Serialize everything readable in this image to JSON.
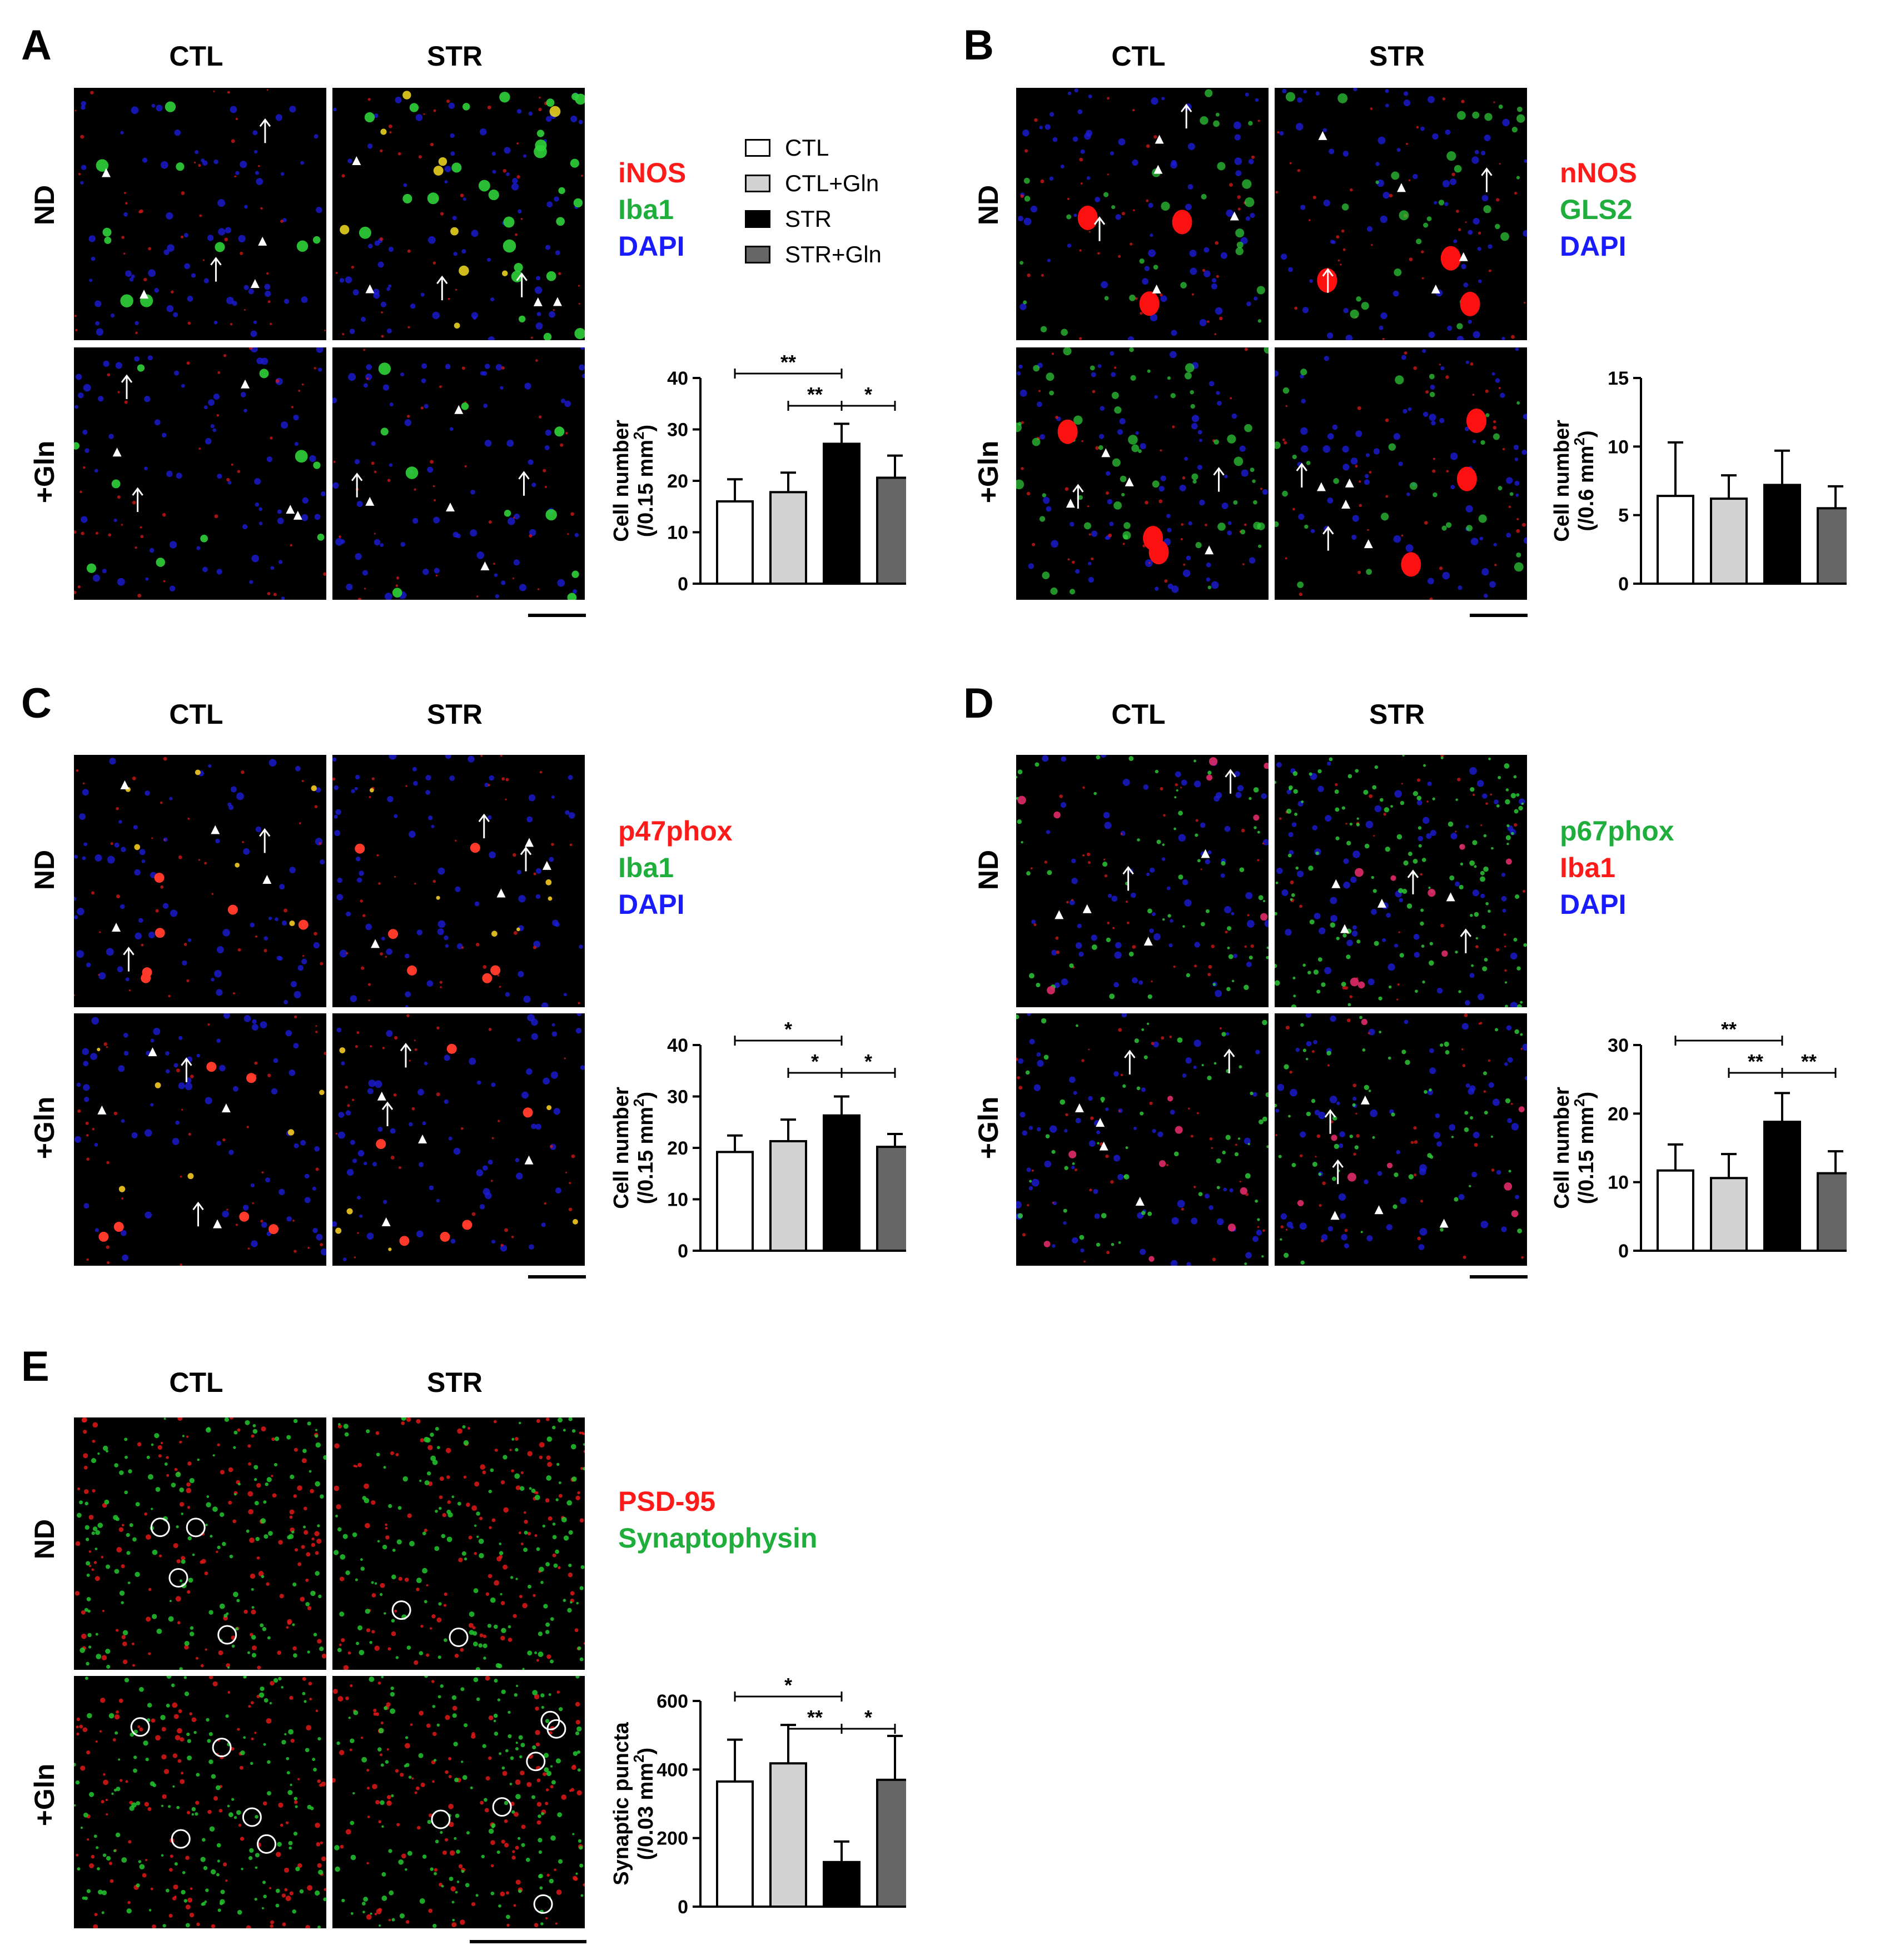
{
  "panels": {
    "A": {
      "label": "A",
      "col_headers": [
        "CTL",
        "STR"
      ],
      "row_headers": [
        "ND",
        "+Gln"
      ],
      "stains": [
        {
          "text": "iNOS",
          "color": "#ff1a1a"
        },
        {
          "text": "Iba1",
          "color": "#1fae3c"
        },
        {
          "text": "DAPI",
          "color": "#1a1aff"
        }
      ]
    },
    "B": {
      "label": "B",
      "col_headers": [
        "CTL",
        "STR"
      ],
      "row_headers": [
        "ND",
        "+Gln"
      ],
      "stains": [
        {
          "text": "nNOS",
          "color": "#ff1a1a"
        },
        {
          "text": "GLS2",
          "color": "#1fae3c"
        },
        {
          "text": "DAPI",
          "color": "#1a1aff"
        }
      ]
    },
    "C": {
      "label": "C",
      "col_headers": [
        "CTL",
        "STR"
      ],
      "row_headers": [
        "ND",
        "+Gln"
      ],
      "stains": [
        {
          "text": "p47phox",
          "color": "#ff1a1a"
        },
        {
          "text": "Iba1",
          "color": "#1fae3c"
        },
        {
          "text": "DAPI",
          "color": "#1a1aff"
        }
      ]
    },
    "D": {
      "label": "D",
      "col_headers": [
        "CTL",
        "STR"
      ],
      "row_headers": [
        "ND",
        "+Gln"
      ],
      "stains": [
        {
          "text": "p67phox",
          "color": "#1fae3c"
        },
        {
          "text": "Iba1",
          "color": "#ff1a1a"
        },
        {
          "text": "DAPI",
          "color": "#1a1aff"
        }
      ]
    },
    "E": {
      "label": "E",
      "col_headers": [
        "CTL",
        "STR"
      ],
      "row_headers": [
        "ND",
        "+Gln"
      ],
      "stains": [
        {
          "text": "PSD-95",
          "color": "#ff1a1a"
        },
        {
          "text": "Synaptophysin",
          "color": "#1fae3c"
        }
      ]
    }
  },
  "legend": [
    {
      "label": "CTL",
      "color": "#ffffff"
    },
    {
      "label": "CTL+Gln",
      "color": "#d3d3d3"
    },
    {
      "label": "STR",
      "color": "#000000"
    },
    {
      "label": "STR+Gln",
      "color": "#666666"
    }
  ],
  "chart_data": [
    {
      "panel": "A",
      "type": "bar",
      "categories": [
        "CTL",
        "CTL+Gln",
        "STR",
        "STR+Gln"
      ],
      "values": [
        16,
        17.8,
        27.2,
        20.6
      ],
      "errors": [
        4.3,
        3.8,
        3.9,
        4.3
      ],
      "ylabel": "Cell number",
      "yunit": "(/0.15 mm",
      "yunit_sup": "2",
      "yunit_end": ")",
      "ylim": [
        0,
        40
      ],
      "yticks": [
        0,
        10,
        20,
        30,
        40
      ],
      "significance": [
        {
          "from": 0,
          "to": 2,
          "label": "**"
        },
        {
          "from": 1,
          "to": 2,
          "label": "**"
        },
        {
          "from": 2,
          "to": 3,
          "label": "*"
        }
      ]
    },
    {
      "panel": "B",
      "type": "bar",
      "categories": [
        "CTL",
        "CTL+Gln",
        "STR",
        "STR+Gln"
      ],
      "values": [
        6.4,
        6.2,
        7.2,
        5.5
      ],
      "errors": [
        3.9,
        1.7,
        2.5,
        1.6
      ],
      "ylabel": "Cell number",
      "yunit": "(/0.6 mm",
      "yunit_sup": "2",
      "yunit_end": ")",
      "ylim": [
        0,
        15
      ],
      "yticks": [
        0,
        5,
        10,
        15
      ],
      "significance": []
    },
    {
      "panel": "C",
      "type": "bar",
      "categories": [
        "CTL",
        "CTL+Gln",
        "STR",
        "STR+Gln"
      ],
      "values": [
        19.2,
        21.3,
        26.3,
        20.2
      ],
      "errors": [
        3.2,
        4.2,
        3.7,
        2.5
      ],
      "ylabel": "Cell number",
      "yunit": "(/0.15 mm",
      "yunit_sup": "2",
      "yunit_end": ")",
      "ylim": [
        0,
        40
      ],
      "yticks": [
        0,
        10,
        20,
        30,
        40
      ],
      "significance": [
        {
          "from": 0,
          "to": 2,
          "label": "*"
        },
        {
          "from": 1,
          "to": 2,
          "label": "*"
        },
        {
          "from": 2,
          "to": 3,
          "label": "*"
        }
      ]
    },
    {
      "panel": "D",
      "type": "bar",
      "categories": [
        "CTL",
        "CTL+Gln",
        "STR",
        "STR+Gln"
      ],
      "values": [
        11.7,
        10.6,
        18.8,
        11.3
      ],
      "errors": [
        3.8,
        3.5,
        4.2,
        3.2
      ],
      "ylabel": "Cell number",
      "yunit": "(/0.15 mm",
      "yunit_sup": "2",
      "yunit_end": ")",
      "ylim": [
        0,
        30
      ],
      "yticks": [
        0,
        10,
        20,
        30
      ],
      "significance": [
        {
          "from": 0,
          "to": 2,
          "label": "**"
        },
        {
          "from": 1,
          "to": 2,
          "label": "**"
        },
        {
          "from": 2,
          "to": 3,
          "label": "**"
        }
      ]
    },
    {
      "panel": "E",
      "type": "bar",
      "categories": [
        "CTL",
        "CTL+Gln",
        "STR",
        "STR+Gln"
      ],
      "values": [
        365,
        418,
        130,
        370
      ],
      "errors": [
        122,
        112,
        60,
        128
      ],
      "ylabel": "Synaptic puncta",
      "yunit": "(/0.03 mm",
      "yunit_sup": "2",
      "yunit_end": ")",
      "ylim": [
        0,
        600
      ],
      "yticks": [
        0,
        200,
        400,
        600
      ],
      "significance": [
        {
          "from": 0,
          "to": 2,
          "label": "*"
        },
        {
          "from": 1,
          "to": 2,
          "label": "**"
        },
        {
          "from": 2,
          "to": 3,
          "label": "*"
        }
      ]
    }
  ]
}
